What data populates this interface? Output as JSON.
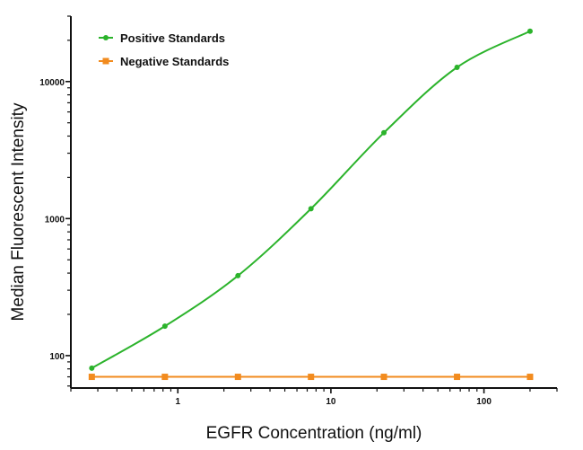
{
  "chart_data": {
    "type": "line",
    "title": "",
    "xlabel": "EGFR Concentration (ng/ml)",
    "ylabel": "Median Fluorescent Intensity",
    "xscale": "log",
    "yscale": "log",
    "xlim": [
      0.2,
      300
    ],
    "ylim": [
      58,
      30000
    ],
    "xticks": [
      1,
      10,
      100
    ],
    "xtick_labels": [
      "1",
      "10",
      "100"
    ],
    "yticks": [
      100,
      1000,
      10000
    ],
    "ytick_labels": [
      "100",
      "1000",
      "10000"
    ],
    "grid": false,
    "legend_position": "top-left",
    "series": [
      {
        "name": "Positive Standards",
        "color": "#2bb32b",
        "marker": "circle",
        "fit_curve": true,
        "x": [
          0.274,
          0.823,
          2.47,
          7.41,
          22.2,
          66.7,
          200
        ],
        "y": [
          81,
          164,
          383,
          1180,
          4230,
          12700,
          23300
        ]
      },
      {
        "name": "Negative Standards",
        "color": "#f28b1e",
        "marker": "square",
        "fit_curve": false,
        "x": [
          0.274,
          0.823,
          2.47,
          7.41,
          22.2,
          66.7,
          200
        ],
        "y": [
          70,
          70,
          70,
          70,
          70,
          70,
          70
        ]
      }
    ]
  }
}
